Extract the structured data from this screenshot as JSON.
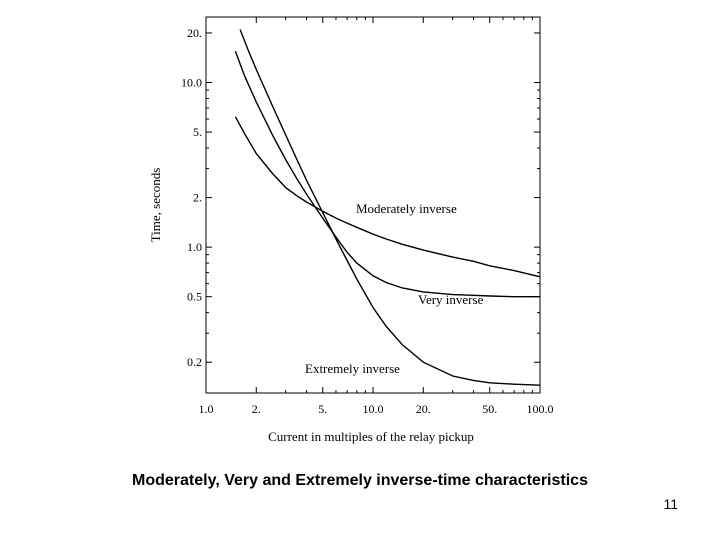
{
  "slide": {
    "caption": "Moderately, Very and Extremely inverse-time characteristics",
    "page_number": "11"
  },
  "chart_data": {
    "type": "line",
    "xlabel": "Current in multiples of the relay pickup",
    "ylabel": "Time, seconds",
    "x_scale": "log",
    "y_scale": "log",
    "xlim": [
      1.0,
      100.0
    ],
    "ylim": [
      0.13,
      25.0
    ],
    "x_ticks": [
      {
        "value": 1.0,
        "label": "1.0"
      },
      {
        "value": 2.0,
        "label": "2."
      },
      {
        "value": 5.0,
        "label": "5."
      },
      {
        "value": 10.0,
        "label": "10.0"
      },
      {
        "value": 20.0,
        "label": "20."
      },
      {
        "value": 50.0,
        "label": "50."
      },
      {
        "value": 100.0,
        "label": "100.0"
      }
    ],
    "y_ticks": [
      {
        "value": 20.0,
        "label": "20."
      },
      {
        "value": 10.0,
        "label": "10.0"
      },
      {
        "value": 5.0,
        "label": "5."
      },
      {
        "value": 2.0,
        "label": "2."
      },
      {
        "value": 1.0,
        "label": "1.0"
      },
      {
        "value": 0.5,
        "label": "0.5"
      },
      {
        "value": 0.2,
        "label": "0.2"
      }
    ],
    "grid": false,
    "series": [
      {
        "name": "Moderately inverse",
        "x": [
          1.5,
          1.7,
          2,
          2.5,
          3,
          3.5,
          4,
          5,
          6,
          7,
          8,
          10,
          12,
          15,
          20,
          30,
          40,
          50,
          70,
          100
        ],
        "y": [
          6.2,
          4.9,
          3.7,
          2.8,
          2.3,
          2.05,
          1.88,
          1.65,
          1.5,
          1.4,
          1.32,
          1.2,
          1.12,
          1.04,
          0.96,
          0.87,
          0.82,
          0.77,
          0.72,
          0.66
        ]
      },
      {
        "name": "Very inverse",
        "x": [
          1.5,
          1.7,
          2,
          2.5,
          3,
          3.5,
          4,
          5,
          6,
          7,
          8,
          10,
          12,
          15,
          20,
          30,
          40,
          50,
          70,
          100
        ],
        "y": [
          15.5,
          11.0,
          7.6,
          4.8,
          3.4,
          2.6,
          2.1,
          1.5,
          1.15,
          0.93,
          0.8,
          0.67,
          0.61,
          0.565,
          0.535,
          0.515,
          0.51,
          0.505,
          0.5,
          0.5
        ]
      },
      {
        "name": "Extremely inverse",
        "x": [
          1.6,
          1.8,
          2,
          2.5,
          3,
          3.5,
          4,
          5,
          6,
          7,
          8,
          10,
          12,
          15,
          20,
          30,
          40,
          50,
          70,
          100
        ],
        "y": [
          21.0,
          15.5,
          12.0,
          7.2,
          4.8,
          3.4,
          2.55,
          1.62,
          1.12,
          0.83,
          0.64,
          0.43,
          0.33,
          0.255,
          0.2,
          0.165,
          0.155,
          0.15,
          0.147,
          0.145
        ]
      }
    ]
  }
}
